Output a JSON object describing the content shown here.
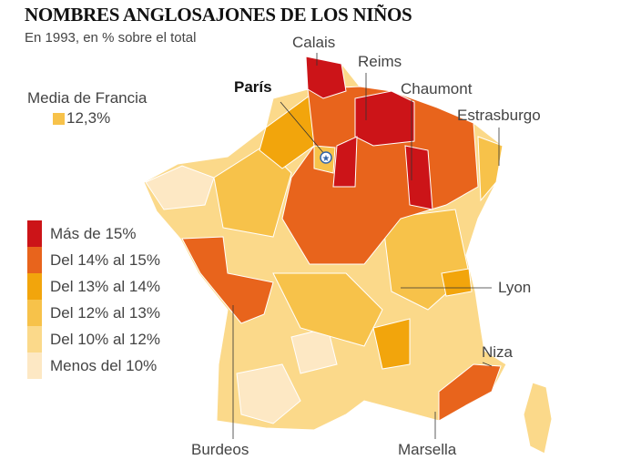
{
  "title": "NOMBRES ANGLOSAJONES DE LOS NIÑOS",
  "subtitle": "En 1993, en % sobre el total",
  "average": {
    "label": "Media de Francia",
    "value": "12,3%",
    "color": "#f7c24a"
  },
  "legend": [
    {
      "label": "Más de 15%",
      "color": "#cc1418"
    },
    {
      "label": "Del 14% al 15%",
      "color": "#e8641c"
    },
    {
      "label": "Del 13% al 14%",
      "color": "#f2a50c"
    },
    {
      "label": "Del 12% al 13%",
      "color": "#f7c24a"
    },
    {
      "label": "Del 10% al 12%",
      "color": "#fbd98a"
    },
    {
      "label": "Menos del 10%",
      "color": "#fde8c4"
    }
  ],
  "cities": {
    "calais": "Calais",
    "reims": "Reims",
    "paris": "París",
    "chaumont": "Chaumont",
    "estrasburgo": "Estrasburgo",
    "lyon": "Lyon",
    "niza": "Niza",
    "burdeos": "Burdeos",
    "marsella": "Marsella"
  }
}
